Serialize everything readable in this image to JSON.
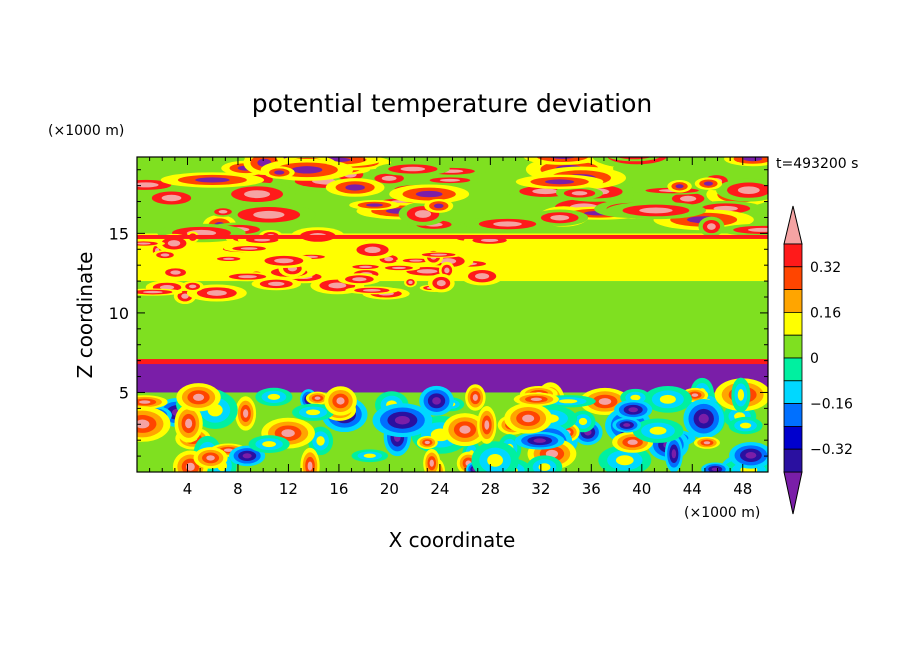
{
  "chart_data": {
    "type": "heatmap",
    "title": "potential temperature deviation",
    "xlabel": "X coordinate",
    "ylabel": "Z coordinate",
    "x_unit": "(×1000 m)",
    "y_unit": "(×1000 m)",
    "time_label": "t=493200 s",
    "xlim": [
      0,
      50
    ],
    "ylim": [
      0,
      19.8
    ],
    "x_ticks": [
      4,
      8,
      12,
      16,
      20,
      24,
      28,
      32,
      36,
      40,
      44,
      48
    ],
    "y_ticks": [
      5,
      10,
      15
    ],
    "colorbar": {
      "levels": [
        -0.4,
        -0.32,
        -0.24,
        -0.16,
        -0.08,
        0,
        0.08,
        0.16,
        0.24,
        0.32,
        0.4
      ],
      "tick_labels": [
        "0.32",
        "0.16",
        "0",
        "−0.16",
        "−0.32"
      ],
      "tick_values": [
        0.32,
        0.16,
        0,
        -0.16,
        -0.32
      ],
      "colors": [
        "#7a1ea8",
        "#2a10a0",
        "#0000cd",
        "#0070ff",
        "#00d8ff",
        "#00f0a0",
        "#7fe020",
        "#ffff00",
        "#ffa500",
        "#ff4500",
        "#ff1a1a",
        "#f5a3a3"
      ]
    },
    "bands": [
      {
        "z": [
          0,
          5
        ],
        "value": "mixed"
      },
      {
        "z": [
          5,
          7
        ],
        "value": -0.44
      },
      {
        "z": [
          7,
          12
        ],
        "value": 0
      },
      {
        "z": [
          12,
          15
        ],
        "value": 0.08
      },
      {
        "z": [
          15,
          19.8
        ],
        "value": "mixed"
      }
    ]
  }
}
